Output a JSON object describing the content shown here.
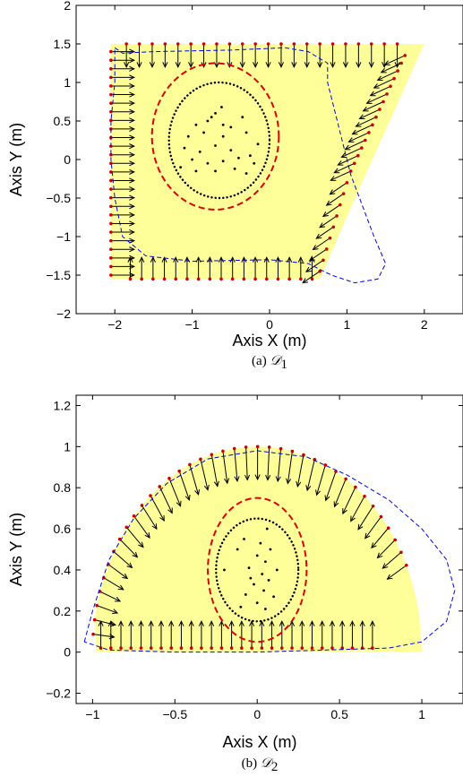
{
  "colors": {
    "region_fill": "#ffff99",
    "boundary_point": "#cc0000",
    "ellipse": "#dd0000",
    "trajectory": "#0000ee",
    "arrow": "#000000"
  },
  "chart_data": [
    {
      "type": "vector-field",
      "caption_prefix": "(a) ",
      "caption_math": "𝒟",
      "caption_sub": "1",
      "xlabel": "Axis X (m)",
      "ylabel": "Axis Y (m)",
      "xlim": [
        -2.5,
        2.5
      ],
      "ylim": [
        -2,
        2
      ],
      "xticks": [
        -2,
        -1,
        0,
        1,
        2
      ],
      "xtick_labels": [
        "−2",
        "−1",
        "0",
        "1",
        "2"
      ],
      "yticks": [
        -2,
        -1.5,
        -1,
        -0.5,
        0,
        0.5,
        1,
        1.5,
        2
      ],
      "ytick_labels": [
        "−2",
        "−1.5",
        "−1",
        "−0.5",
        "0",
        "0.5",
        "1",
        "1.5",
        "2"
      ],
      "region": [
        [
          -2.05,
          1.5
        ],
        [
          2.0,
          1.5
        ],
        [
          1.15,
          -0.4
        ],
        [
          0.65,
          -1.55
        ],
        [
          -2.05,
          -1.55
        ]
      ],
      "arrows": [
        {
          "side": "top",
          "from": [
            -1.85,
            1.5
          ],
          "to": [
            1.65,
            1.5
          ],
          "n": 22,
          "dir": [
            0,
            -0.3
          ]
        },
        {
          "side": "left",
          "from": [
            -2.05,
            1.4
          ],
          "to": [
            -2.05,
            -1.5
          ],
          "n": 27,
          "dir": [
            0.3,
            0
          ]
        },
        {
          "side": "bottom",
          "from": [
            -1.8,
            -1.55
          ],
          "to": [
            0.55,
            -1.55
          ],
          "n": 17,
          "dir": [
            0,
            0.28
          ]
        },
        {
          "side": "right-upper",
          "from": [
            1.75,
            1.35
          ],
          "to": [
            1.05,
            -0.15
          ],
          "n": 16,
          "dir": [
            -0.26,
            -0.12
          ]
        },
        {
          "side": "right-lower",
          "from": [
            1.0,
            -0.3
          ],
          "to": [
            0.65,
            -1.45
          ],
          "n": 9,
          "dir": [
            -0.22,
            -0.15
          ]
        }
      ],
      "ellipse_outer": {
        "cx": -0.7,
        "cy": 0.3,
        "rx": 0.82,
        "ry": 0.95
      },
      "ellipse_inner": {
        "cx": -0.65,
        "cy": 0.25,
        "rx": 0.65,
        "ry": 0.75
      },
      "trajectory": [
        [
          -2.0,
          1.45
        ],
        [
          -1.9,
          1.38
        ],
        [
          -1.5,
          1.4
        ],
        [
          -0.5,
          1.42
        ],
        [
          0.2,
          1.45
        ],
        [
          0.5,
          1.4
        ],
        [
          0.75,
          1.25
        ],
        [
          0.75,
          1.0
        ],
        [
          0.85,
          0.6
        ],
        [
          0.95,
          0.2
        ],
        [
          1.05,
          -0.2
        ],
        [
          1.2,
          -0.6
        ],
        [
          1.35,
          -1.0
        ],
        [
          1.5,
          -1.35
        ],
        [
          1.4,
          -1.55
        ],
        [
          1.1,
          -1.6
        ],
        [
          0.8,
          -1.5
        ],
        [
          0.5,
          -1.35
        ],
        [
          0.0,
          -1.3
        ],
        [
          -1.0,
          -1.32
        ],
        [
          -1.6,
          -1.25
        ],
        [
          -1.9,
          -1.0
        ],
        [
          -2.0,
          -0.5
        ],
        [
          -2.05,
          0.0
        ],
        [
          -2.05,
          0.5
        ],
        [
          -2.0,
          1.0
        ],
        [
          -2.0,
          1.45
        ]
      ],
      "samples": [
        [
          -0.75,
          0.55
        ],
        [
          -0.62,
          0.68
        ],
        [
          -0.7,
          0.6
        ],
        [
          -0.95,
          0.45
        ],
        [
          -0.5,
          0.42
        ],
        [
          -0.35,
          0.55
        ],
        [
          -1.05,
          0.3
        ],
        [
          -0.85,
          0.35
        ],
        [
          -0.6,
          0.3
        ],
        [
          -0.3,
          0.35
        ],
        [
          -0.15,
          0.2
        ],
        [
          -1.1,
          0.15
        ],
        [
          -0.9,
          0.1
        ],
        [
          -0.7,
          0.18
        ],
        [
          -0.5,
          0.12
        ],
        [
          -0.25,
          0.05
        ],
        [
          -1.0,
          0.0
        ],
        [
          -0.8,
          -0.05
        ],
        [
          -0.6,
          -0.02
        ],
        [
          -0.4,
          0.02
        ],
        [
          -0.2,
          -0.05
        ],
        [
          -1.15,
          -0.1
        ],
        [
          -0.95,
          -0.15
        ],
        [
          -0.7,
          -0.15
        ],
        [
          -0.45,
          -0.12
        ],
        [
          -0.3,
          -0.18
        ],
        [
          -0.6,
          0.45
        ],
        [
          -0.8,
          0.5
        ]
      ]
    },
    {
      "type": "vector-field",
      "caption_prefix": "(b) ",
      "caption_math": "𝒟",
      "caption_sub": "2",
      "xlabel": "Axis X (m)",
      "ylabel": "Axis Y (m)",
      "xlim": [
        -1.1,
        1.25
      ],
      "ylim": [
        -0.25,
        1.25
      ],
      "xticks": [
        -1,
        -0.5,
        0,
        0.5,
        1
      ],
      "xtick_labels": [
        "−1",
        "−0.5",
        "0",
        "0.5",
        "1"
      ],
      "yticks": [
        -0.2,
        0,
        0.2,
        0.4,
        0.6,
        0.8,
        1,
        1.2
      ],
      "ytick_labels": [
        "−0.2",
        "0",
        "0.2",
        "0.4",
        "0.6",
        "0.8",
        "1",
        "1.2"
      ],
      "region_top": {
        "cx": 0.0,
        "cy": 0.0,
        "rx": 1.0,
        "ry": 1.0,
        "a0": 10,
        "a1": 170
      },
      "region_base": [
        [
          -0.98,
          0.0
        ],
        [
          1.0,
          0.0
        ]
      ],
      "arc_arrows": {
        "cx": 0.0,
        "cy": 0.0,
        "rx": 1.0,
        "ry": 1.0,
        "a0": 25,
        "a1": 175,
        "n": 38,
        "len": 0.16
      },
      "bottom_arrows": {
        "from": -0.95,
        "to": 0.7,
        "y": 0.02,
        "n": 28,
        "len": 0.13
      },
      "ellipse_outer": {
        "cx": 0.0,
        "cy": 0.4,
        "rx": 0.3,
        "ry": 0.35
      },
      "ellipse_inner": {
        "cx": 0.0,
        "cy": 0.4,
        "rx": 0.25,
        "ry": 0.25
      },
      "trajectory": [
        [
          -1.05,
          0.05
        ],
        [
          -1.0,
          0.2
        ],
        [
          -0.9,
          0.45
        ],
        [
          -0.75,
          0.65
        ],
        [
          -0.55,
          0.82
        ],
        [
          -0.3,
          0.94
        ],
        [
          0.0,
          0.98
        ],
        [
          0.3,
          0.95
        ],
        [
          0.55,
          0.86
        ],
        [
          0.8,
          0.74
        ],
        [
          1.0,
          0.6
        ],
        [
          1.15,
          0.45
        ],
        [
          1.2,
          0.3
        ],
        [
          1.15,
          0.15
        ],
        [
          1.0,
          0.05
        ],
        [
          0.8,
          0.02
        ],
        [
          0.4,
          0.01
        ],
        [
          0.0,
          0.0
        ],
        [
          -0.5,
          0.0
        ],
        [
          -0.9,
          0.01
        ],
        [
          -1.05,
          0.05
        ]
      ],
      "samples": [
        [
          -0.08,
          0.55
        ],
        [
          0.02,
          0.53
        ],
        [
          0.06,
          0.6
        ],
        [
          -0.12,
          0.5
        ],
        [
          0.0,
          0.47
        ],
        [
          0.05,
          0.44
        ],
        [
          -0.05,
          0.41
        ],
        [
          0.03,
          0.38
        ],
        [
          0.07,
          0.35
        ],
        [
          -0.02,
          0.33
        ],
        [
          0.04,
          0.3
        ],
        [
          -0.07,
          0.28
        ],
        [
          0.1,
          0.27
        ],
        [
          0.0,
          0.24
        ],
        [
          -0.1,
          0.22
        ],
        [
          0.05,
          0.21
        ],
        [
          -0.2,
          0.4
        ],
        [
          0.12,
          0.4
        ],
        [
          -0.04,
          0.36
        ],
        [
          0.08,
          0.5
        ]
      ]
    }
  ]
}
